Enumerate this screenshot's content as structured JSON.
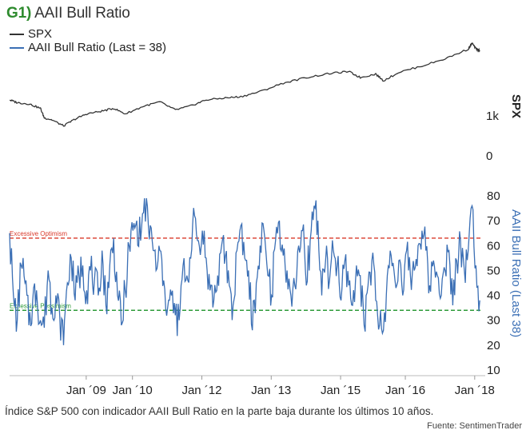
{
  "header": {
    "number": "G1)",
    "title": "AAII Bull Ratio"
  },
  "caption": "Índice S&P 500 con indicador AAII Bull Ratio en la parte baja durante los últimos 10 años.",
  "source": "Fuente: SentimenTrader",
  "colors": {
    "spx": "#333333",
    "bull": "#3b6fb5",
    "optimism": "#d93a2b",
    "pessimism": "#2e9b3a",
    "title_num": "#2e8b2e"
  },
  "chart_data": [
    {
      "type": "line",
      "panel": "top",
      "legend": [
        "SPX",
        "AAII Bull Ratio (Last = 38)"
      ],
      "y_axis_label": "SPX",
      "y_ticks": [
        {
          "value": 0,
          "label": "0"
        },
        {
          "value": 1000,
          "label": "1k"
        }
      ],
      "ylim": [
        0,
        3000
      ],
      "series": [
        {
          "name": "SPX",
          "x": [
            "2008-01",
            "2008-03",
            "2008-06",
            "2008-09",
            "2008-10",
            "2008-12",
            "2009-03",
            "2009-06",
            "2009-09",
            "2010-01",
            "2010-04",
            "2010-07",
            "2010-12",
            "2011-04",
            "2011-08",
            "2011-12",
            "2012-04",
            "2012-09",
            "2013-01",
            "2013-06",
            "2013-12",
            "2014-06",
            "2014-12",
            "2015-05",
            "2015-08",
            "2015-12",
            "2016-02",
            "2016-06",
            "2016-12",
            "2017-06",
            "2017-12",
            "2018-01",
            "2018-02",
            "2018-03"
          ],
          "values": [
            1400,
            1330,
            1300,
            1190,
            950,
            900,
            750,
            920,
            1050,
            1120,
            1190,
            1050,
            1250,
            1350,
            1150,
            1250,
            1400,
            1450,
            1480,
            1610,
            1820,
            1960,
            2060,
            2110,
            1960,
            2050,
            1880,
            2090,
            2250,
            2430,
            2670,
            2820,
            2680,
            2640
          ]
        }
      ]
    },
    {
      "type": "line",
      "panel": "bottom",
      "y_axis_label": "AAII Bull Ratio (Last 38)",
      "ylim": [
        10,
        80
      ],
      "y_ticks": [
        10,
        20,
        30,
        40,
        50,
        60,
        70,
        80
      ],
      "x_ticks": [
        "Jan ´09",
        "Jan ´10",
        "Jan ´12",
        "Jan ´13",
        "Jan ´15",
        "Jan ´16",
        "Jan ´18"
      ],
      "annotations": [
        {
          "label": "Excessive Optimism",
          "value": 63
        },
        {
          "label": "Excessive Pessimism",
          "value": 34
        }
      ],
      "series": [
        {
          "name": "AAII Bull Ratio",
          "x": [
            "2008-01",
            "2008-02",
            "2008-03",
            "2008-04",
            "2008-05",
            "2008-06",
            "2008-07",
            "2008-08",
            "2008-09",
            "2008-10",
            "2008-11",
            "2008-12",
            "2009-01",
            "2009-02",
            "2009-03",
            "2009-04",
            "2009-05",
            "2009-06",
            "2009-07",
            "2009-08",
            "2009-09",
            "2009-10",
            "2009-11",
            "2009-12",
            "2010-01",
            "2010-02",
            "2010-03",
            "2010-04",
            "2010-05",
            "2010-06",
            "2010-07",
            "2010-08",
            "2010-09",
            "2010-10",
            "2010-11",
            "2010-12",
            "2011-01",
            "2011-02",
            "2011-03",
            "2011-04",
            "2011-05",
            "2011-06",
            "2011-07",
            "2011-08",
            "2011-09",
            "2011-10",
            "2011-11",
            "2011-12",
            "2012-01",
            "2012-02",
            "2012-03",
            "2012-04",
            "2012-05",
            "2012-06",
            "2012-07",
            "2012-08",
            "2012-09",
            "2012-10",
            "2012-11",
            "2012-12",
            "2013-01",
            "2013-02",
            "2013-03",
            "2013-04",
            "2013-05",
            "2013-06",
            "2013-07",
            "2013-08",
            "2013-09",
            "2013-10",
            "2013-11",
            "2013-12",
            "2014-01",
            "2014-02",
            "2014-03",
            "2014-04",
            "2014-05",
            "2014-06",
            "2014-07",
            "2014-08",
            "2014-09",
            "2014-10",
            "2014-11",
            "2014-12",
            "2015-01",
            "2015-02",
            "2015-03",
            "2015-04",
            "2015-05",
            "2015-06",
            "2015-07",
            "2015-08",
            "2015-09",
            "2015-10",
            "2015-11",
            "2015-12",
            "2016-01",
            "2016-02",
            "2016-03",
            "2016-04",
            "2016-05",
            "2016-06",
            "2016-07",
            "2016-08",
            "2016-09",
            "2016-10",
            "2016-11",
            "2016-12",
            "2017-01",
            "2017-02",
            "2017-03",
            "2017-04",
            "2017-05",
            "2017-06",
            "2017-07",
            "2017-08",
            "2017-09",
            "2017-10",
            "2017-11",
            "2017-12",
            "2018-01",
            "2018-02",
            "2018-03"
          ],
          "values": [
            65,
            40,
            30,
            52,
            45,
            28,
            38,
            42,
            30,
            27,
            50,
            35,
            40,
            32,
            20,
            45,
            55,
            38,
            48,
            52,
            42,
            50,
            46,
            40,
            58,
            36,
            52,
            63,
            40,
            28,
            42,
            60,
            66,
            70,
            62,
            79,
            68,
            62,
            50,
            58,
            46,
            35,
            40,
            32,
            30,
            52,
            48,
            55,
            72,
            62,
            66,
            55,
            42,
            38,
            48,
            60,
            56,
            44,
            36,
            58,
            68,
            55,
            50,
            26,
            45,
            60,
            66,
            48,
            40,
            62,
            70,
            56,
            50,
            40,
            44,
            60,
            66,
            44,
            62,
            76,
            70,
            40,
            54,
            46,
            58,
            52,
            38,
            54,
            44,
            36,
            52,
            48,
            28,
            44,
            54,
            38,
            28,
            26,
            48,
            56,
            46,
            54,
            40,
            58,
            48,
            50,
            60,
            66,
            58,
            44,
            54,
            48,
            40,
            50,
            58,
            36,
            54,
            62,
            50,
            58,
            76,
            52,
            38
          ]
        }
      ]
    }
  ]
}
